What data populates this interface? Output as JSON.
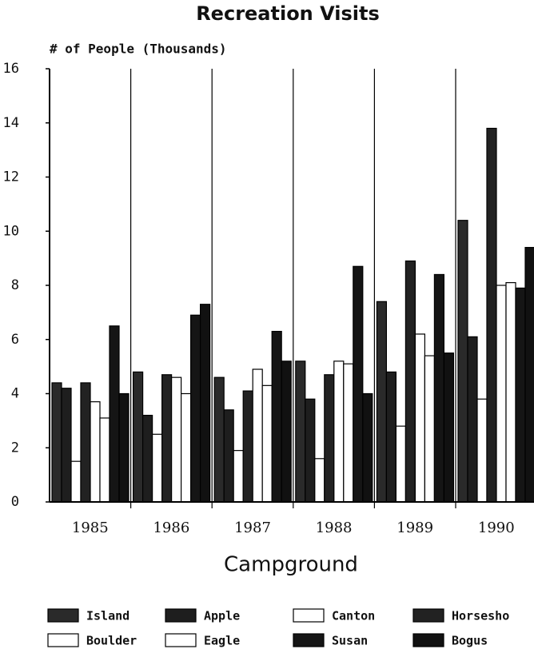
{
  "chart_data": {
    "type": "bar",
    "title": "Recreation Visits",
    "y_label": "# of People (Thousands)",
    "x_label": "Campground",
    "categories": [
      "1985",
      "1986",
      "1987",
      "1988",
      "1989",
      "1990"
    ],
    "ylim": [
      0,
      16
    ],
    "yticks": [
      0,
      2,
      4,
      6,
      8,
      10,
      12,
      14,
      16
    ],
    "grid": true,
    "series": [
      {
        "name": "Island",
        "color": "#2a2a2a",
        "values": [
          4.4,
          4.8,
          4.6,
          5.2,
          7.4,
          10.4
        ]
      },
      {
        "name": "Apple",
        "color": "#1e1e1e",
        "values": [
          4.2,
          3.2,
          3.4,
          3.8,
          4.8,
          6.1
        ]
      },
      {
        "name": "Canton",
        "color": "#ffffff",
        "values": [
          1.5,
          2.5,
          1.9,
          1.6,
          2.8,
          3.8
        ]
      },
      {
        "name": "Horsesho",
        "color": "#222222",
        "values": [
          4.4,
          4.7,
          4.1,
          4.7,
          8.9,
          13.8
        ]
      },
      {
        "name": "Boulder",
        "color": "#ffffff",
        "values": [
          3.7,
          4.6,
          4.9,
          5.2,
          6.2,
          8.0
        ]
      },
      {
        "name": "Eagle",
        "color": "#ffffff",
        "values": [
          3.1,
          4.0,
          4.3,
          5.1,
          5.4,
          8.1
        ]
      },
      {
        "name": "Susan",
        "color": "#151515",
        "values": [
          6.5,
          6.9,
          6.3,
          8.7,
          8.4,
          7.9
        ]
      },
      {
        "name": "Bogus",
        "color": "#111111",
        "values": [
          4.0,
          7.3,
          5.2,
          4.0,
          5.5,
          9.4
        ]
      }
    ]
  }
}
